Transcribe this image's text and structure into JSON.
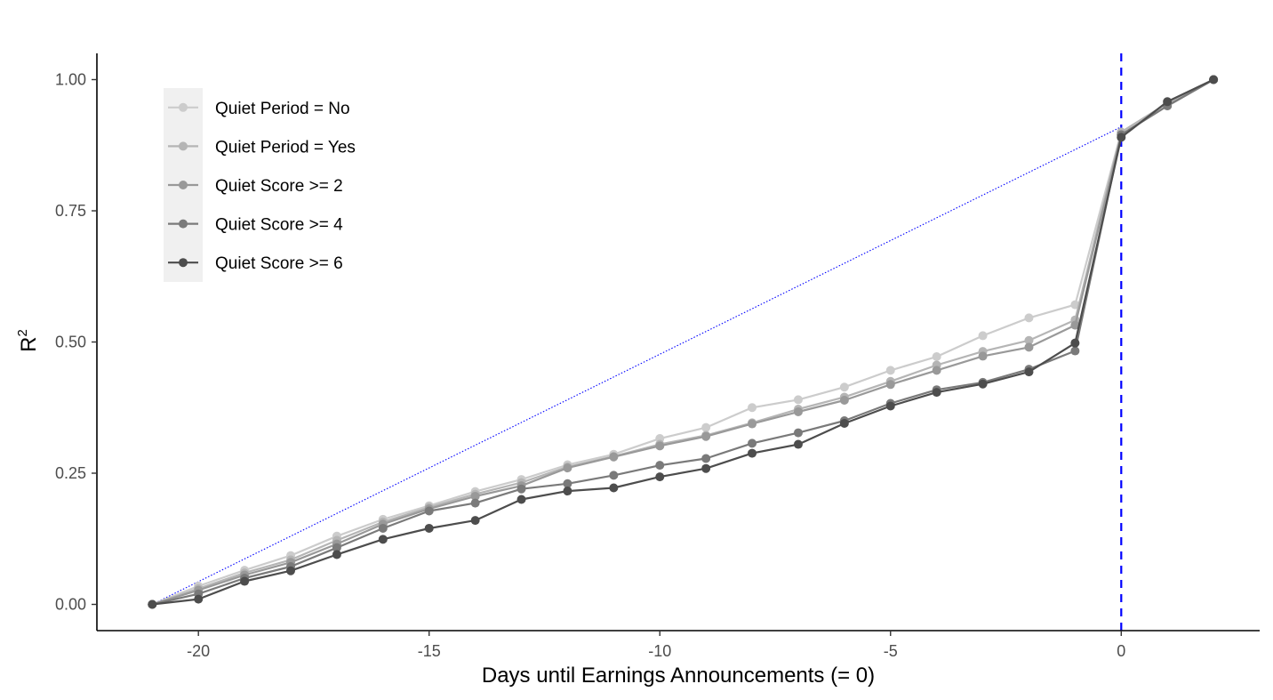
{
  "chart_data": {
    "type": "line",
    "title": "",
    "xlabel": "Days until Earnings Announcements (= 0)",
    "ylabel_base": "R",
    "ylabel_superscript": "2",
    "xlim": [
      -22.2,
      3.0
    ],
    "ylim": [
      -0.05,
      1.05
    ],
    "x_ticks": [
      -20,
      -15,
      -10,
      -5,
      0
    ],
    "y_ticks": [
      0.0,
      0.25,
      0.5,
      0.75,
      1.0
    ],
    "x_tick_labels": [
      "-20",
      "-15",
      "-10",
      "-5",
      "0"
    ],
    "y_tick_labels": [
      "0.00",
      "0.25",
      "0.50",
      "0.75",
      "1.00"
    ],
    "grid": false,
    "legend_position": "top-left",
    "x": [
      -21,
      -20,
      -19,
      -18,
      -17,
      -16,
      -15,
      -14,
      -13,
      -12,
      -11,
      -10,
      -9,
      -8,
      -7,
      -6,
      -5,
      -4,
      -3,
      -2,
      -1,
      0,
      1,
      2
    ],
    "series": [
      {
        "name": "Quiet Period = No",
        "color": "#cccccc",
        "values": [
          0.0,
          0.035,
          0.065,
          0.093,
          0.13,
          0.162,
          0.188,
          0.215,
          0.238,
          0.266,
          0.286,
          0.316,
          0.337,
          0.375,
          0.39,
          0.414,
          0.446,
          0.472,
          0.512,
          0.546,
          0.571,
          0.9,
          0.955,
          1.0
        ]
      },
      {
        "name": "Quiet Period = Yes",
        "color": "#b5b5b5",
        "values": [
          0.0,
          0.03,
          0.06,
          0.085,
          0.122,
          0.157,
          0.185,
          0.21,
          0.232,
          0.262,
          0.282,
          0.305,
          0.322,
          0.346,
          0.372,
          0.395,
          0.425,
          0.456,
          0.482,
          0.503,
          0.542,
          0.9,
          0.955,
          1.0
        ]
      },
      {
        "name": "Quiet Score >= 2",
        "color": "#999999",
        "values": [
          0.0,
          0.027,
          0.056,
          0.08,
          0.115,
          0.153,
          0.182,
          0.206,
          0.226,
          0.26,
          0.281,
          0.302,
          0.32,
          0.344,
          0.367,
          0.389,
          0.419,
          0.446,
          0.473,
          0.49,
          0.532,
          0.895,
          0.95,
          1.0
        ]
      },
      {
        "name": "Quiet Score >= 4",
        "color": "#7a7a7a",
        "values": [
          0.0,
          0.02,
          0.05,
          0.072,
          0.108,
          0.145,
          0.178,
          0.193,
          0.22,
          0.23,
          0.246,
          0.265,
          0.278,
          0.307,
          0.327,
          0.35,
          0.383,
          0.409,
          0.423,
          0.448,
          0.483,
          0.895,
          0.95,
          1.0
        ]
      },
      {
        "name": "Quiet Score >= 6",
        "color": "#4d4d4d",
        "values": [
          0.0,
          0.01,
          0.044,
          0.064,
          0.095,
          0.124,
          0.145,
          0.16,
          0.2,
          0.216,
          0.222,
          0.243,
          0.259,
          0.288,
          0.305,
          0.345,
          0.378,
          0.404,
          0.42,
          0.443,
          0.498,
          0.89,
          0.958,
          1.0
        ]
      }
    ],
    "reference_lines": [
      {
        "type": "vertical",
        "x": 0,
        "style": "dashed",
        "color": "#0000ff"
      },
      {
        "type": "segment",
        "from": [
          -21,
          0.0
        ],
        "to": [
          0,
          0.91
        ],
        "style": "dotted",
        "color": "#0000ff"
      }
    ],
    "legend_background": "#f0f0f0"
  }
}
